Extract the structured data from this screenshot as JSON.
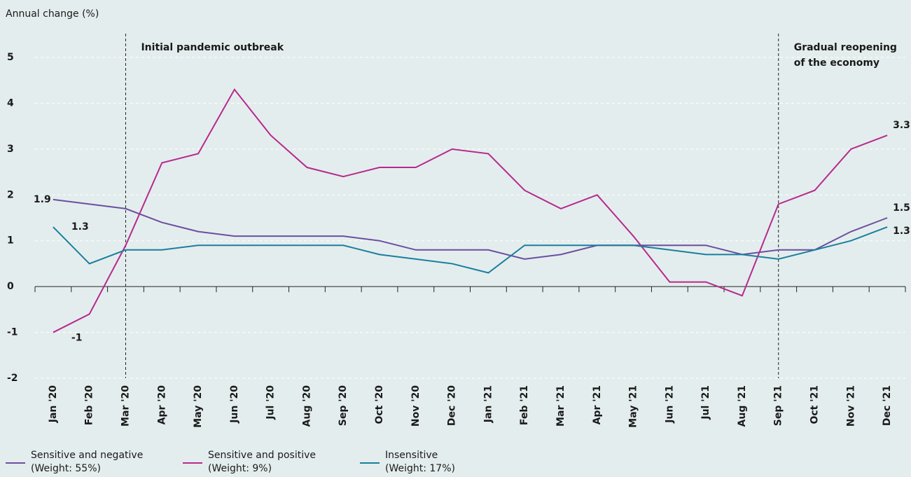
{
  "chart_data": {
    "type": "line",
    "y_label": "Annual change (%)",
    "categories": [
      "Jan '20",
      "Feb '20",
      "Mar '20",
      "Apr '20",
      "May '20",
      "Jun '20",
      "Jul '20",
      "Aug '20",
      "Sep '20",
      "Oct '20",
      "Nov '20",
      "Dec '20",
      "Jan '21",
      "Feb '21",
      "Mar '21",
      "Apr '21",
      "May '21",
      "Jun '21",
      "Jul '21",
      "Aug '21",
      "Sep '21",
      "Oct '21",
      "Nov '21",
      "Dec '21"
    ],
    "series": [
      {
        "name": "Sensitive and negative",
        "note": "(Weight: 55%)",
        "color": "#6b4fa0",
        "values": [
          1.9,
          1.8,
          1.7,
          1.4,
          1.2,
          1.1,
          1.1,
          1.1,
          1.1,
          1.0,
          0.8,
          0.8,
          0.8,
          0.6,
          0.7,
          0.9,
          0.9,
          0.9,
          0.9,
          0.7,
          0.8,
          0.8,
          1.2,
          1.5
        ]
      },
      {
        "name": "Sensitive and positive",
        "note": "(Weight: 9%)",
        "color": "#b52a8e",
        "values": [
          -1,
          -0.6,
          0.9,
          2.7,
          2.9,
          4.3,
          3.3,
          2.6,
          2.4,
          2.6,
          2.6,
          3.0,
          2.9,
          2.1,
          1.7,
          2.0,
          1.1,
          0.1,
          0.1,
          -0.2,
          1.8,
          2.1,
          3.0,
          3.3
        ]
      },
      {
        "name": "Insensitive",
        "note": "(Weight: 17%)",
        "color": "#1a7f9f",
        "values": [
          1.3,
          0.5,
          0.8,
          0.8,
          0.9,
          0.9,
          0.9,
          0.9,
          0.9,
          0.7,
          0.6,
          0.5,
          0.3,
          0.9,
          0.9,
          0.9,
          0.9,
          0.8,
          0.7,
          0.7,
          0.6,
          0.8,
          1.0,
          1.3
        ]
      }
    ],
    "annotations": [
      {
        "category": 2,
        "lines": [
          "Initial pandemic outbreak"
        ]
      },
      {
        "category": 20,
        "lines": [
          "Gradual reopening",
          "of the economy"
        ]
      }
    ],
    "ylim": [
      -2,
      5
    ],
    "yticks": [
      -2,
      -1,
      0,
      1,
      2,
      3,
      4,
      5
    ],
    "grid": true
  }
}
